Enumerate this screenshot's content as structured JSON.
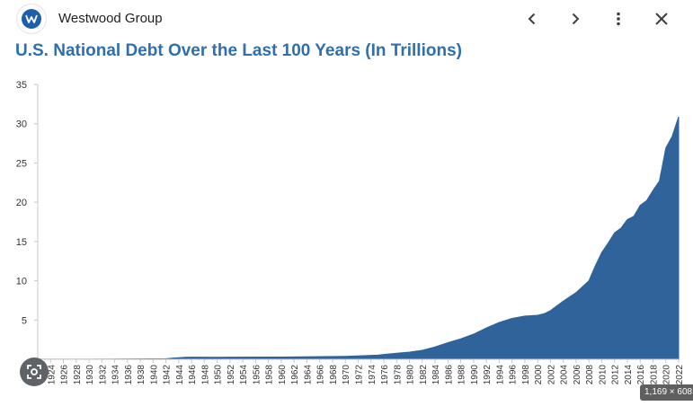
{
  "site": {
    "name": "Westwood Group",
    "logo_icon": "westwood-w-logo"
  },
  "nav": {
    "prev_icon": "chevron-left-icon",
    "next_icon": "chevron-right-icon",
    "more_icon": "more-vert-icon",
    "close_icon": "close-icon"
  },
  "image_size": "1,169 × 608",
  "lens_icon": "lens-search-icon",
  "colors": {
    "area": "#2f6399",
    "title": "#2f6fad"
  },
  "chart_data": {
    "type": "area",
    "title": "U.S. National Debt Over the Last 100 Years (In Trillions)",
    "xlabel": "",
    "ylabel": "",
    "ylim": [
      0,
      35
    ],
    "xlim": [
      1922,
      2022
    ],
    "yticks": [
      5,
      10,
      15,
      20,
      25,
      30,
      35
    ],
    "xticks": [
      1922,
      1924,
      1926,
      1928,
      1930,
      1932,
      1934,
      1936,
      1938,
      1940,
      1942,
      1944,
      1946,
      1948,
      1950,
      1952,
      1954,
      1956,
      1958,
      1960,
      1962,
      1964,
      1966,
      1968,
      1970,
      1972,
      1974,
      1976,
      1978,
      1980,
      1982,
      1984,
      1986,
      1988,
      1990,
      1992,
      1994,
      1996,
      1998,
      2000,
      2002,
      2004,
      2006,
      2008,
      2010,
      2012,
      2014,
      2016,
      2018,
      2020,
      2022
    ],
    "grid": false,
    "legend": "none",
    "x": [
      1922,
      1930,
      1940,
      1942,
      1943,
      1944,
      1945,
      1946,
      1950,
      1960,
      1970,
      1975,
      1976,
      1978,
      1980,
      1982,
      1984,
      1986,
      1988,
      1990,
      1992,
      1994,
      1996,
      1998,
      2000,
      2001,
      2002,
      2004,
      2006,
      2008,
      2009,
      2010,
      2011,
      2012,
      2013,
      2014,
      2015,
      2016,
      2017,
      2018,
      2019,
      2020,
      2021,
      2022
    ],
    "y": [
      0.02,
      0.02,
      0.05,
      0.07,
      0.14,
      0.2,
      0.26,
      0.27,
      0.26,
      0.29,
      0.37,
      0.53,
      0.62,
      0.77,
      0.91,
      1.14,
      1.57,
      2.12,
      2.6,
      3.2,
      4.0,
      4.7,
      5.2,
      5.5,
      5.6,
      5.8,
      6.2,
      7.4,
      8.5,
      10.0,
      11.9,
      13.6,
      14.8,
      16.1,
      16.7,
      17.8,
      18.2,
      19.6,
      20.2,
      21.5,
      22.7,
      26.9,
      28.4,
      30.9
    ]
  }
}
